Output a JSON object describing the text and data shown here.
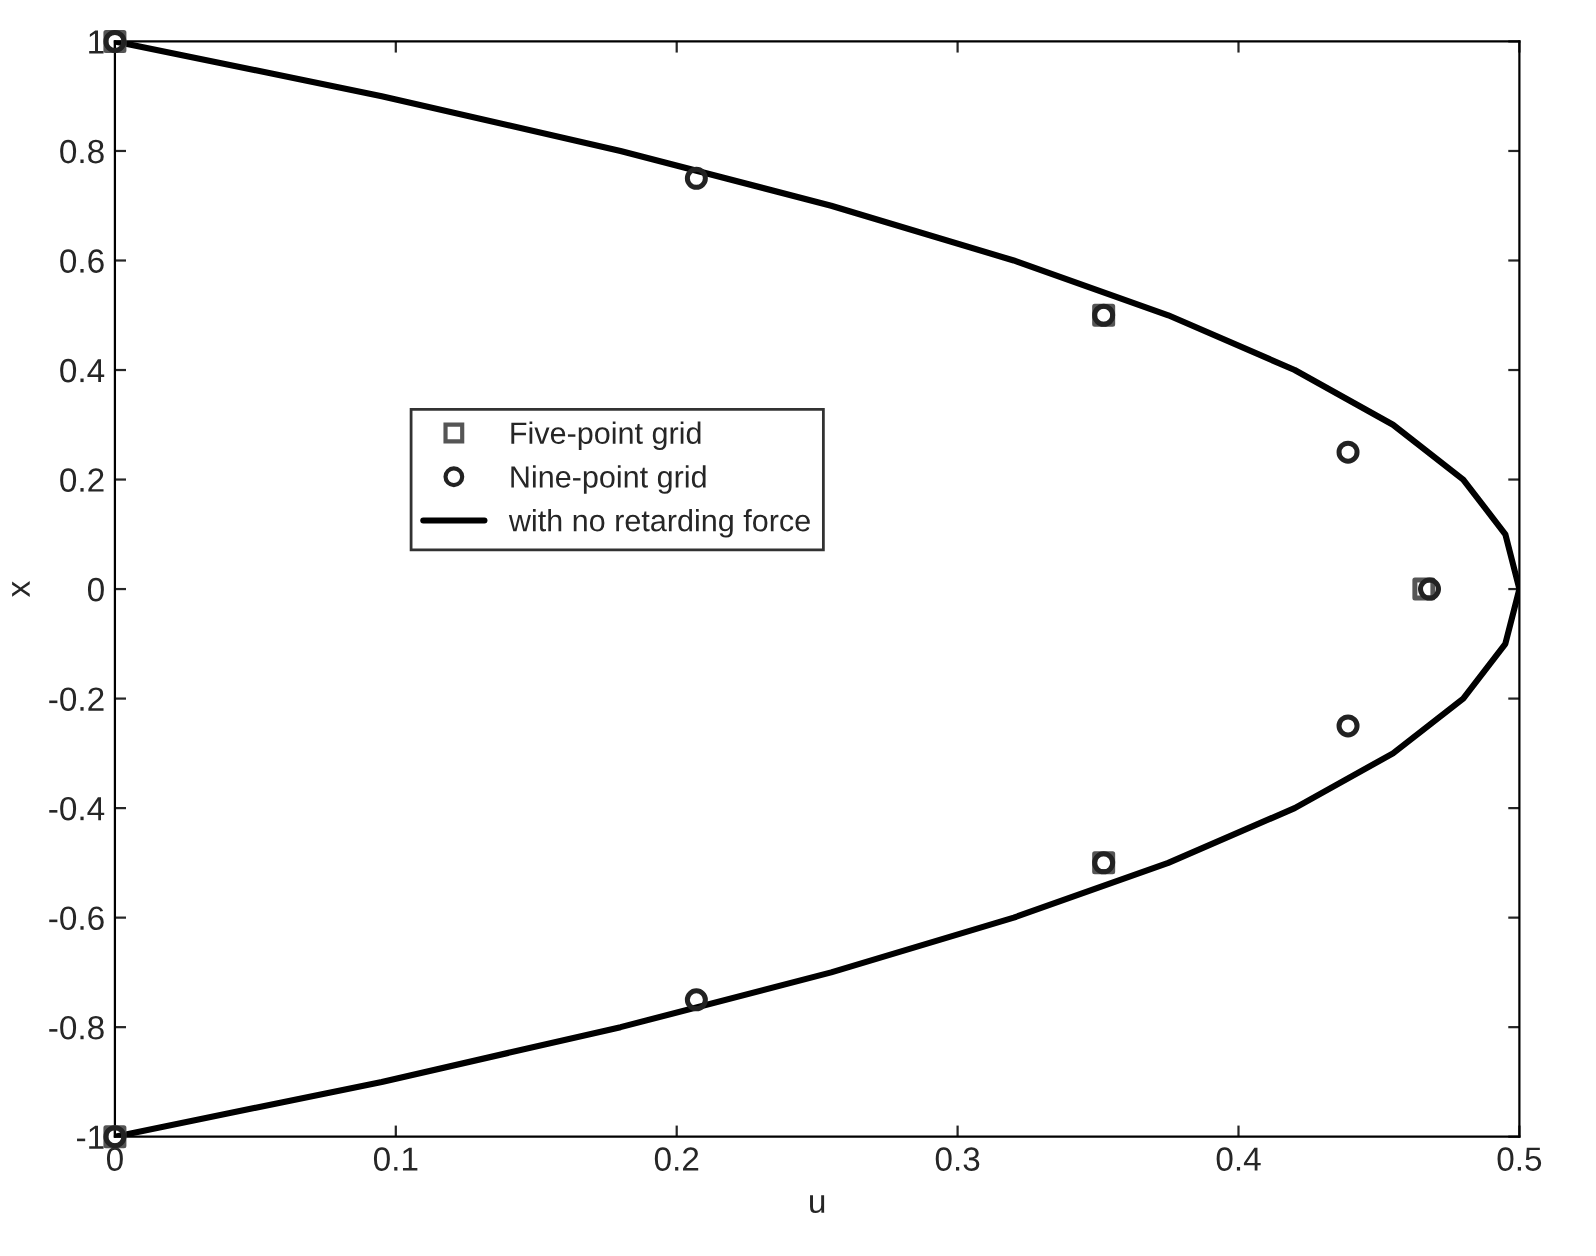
{
  "chart_data": {
    "type": "scatter",
    "xlabel": "u",
    "ylabel": "x",
    "xlim": [
      0,
      0.5
    ],
    "xticks": [
      0,
      0.1,
      0.2,
      0.3,
      0.4,
      0.5
    ],
    "ylim": [
      -1,
      1
    ],
    "yticks": [
      -1,
      -0.8,
      -0.6,
      -0.4,
      -0.2,
      0,
      0.2,
      0.4,
      0.6,
      0.8,
      1
    ],
    "grid": false,
    "legend": "left",
    "series": [
      {
        "name": "Five-point grid",
        "marker": "square",
        "color": "#555555",
        "x": [
          0,
          0.352,
          0.466,
          0.352,
          0
        ],
        "values": [
          1,
          0.5,
          0,
          -0.5,
          -1
        ]
      },
      {
        "name": "Nine-point grid",
        "marker": "circle",
        "color": "#222222",
        "x": [
          0,
          0.207,
          0.352,
          0.439,
          0.468,
          0.439,
          0.352,
          0.207,
          0
        ],
        "values": [
          1,
          0.75,
          0.5,
          0.25,
          0,
          -0.25,
          -0.5,
          -0.75,
          -1
        ]
      },
      {
        "name": "with no retarding force",
        "type": "line",
        "line_style": "solid",
        "color": "#000000",
        "x": [
          0,
          0.095,
          0.18,
          0.255,
          0.32,
          0.375,
          0.42,
          0.455,
          0.48,
          0.495,
          0.5,
          0.495,
          0.48,
          0.455,
          0.42,
          0.375,
          0.32,
          0.255,
          0.18,
          0.095,
          0
        ],
        "values": [
          -1,
          -0.9,
          -0.8,
          -0.7,
          -0.6,
          -0.5,
          -0.4,
          -0.3,
          -0.2,
          -0.1,
          0,
          0.1,
          0.2,
          0.3,
          0.4,
          0.5,
          0.6,
          0.7,
          0.8,
          0.9,
          1
        ]
      }
    ]
  }
}
